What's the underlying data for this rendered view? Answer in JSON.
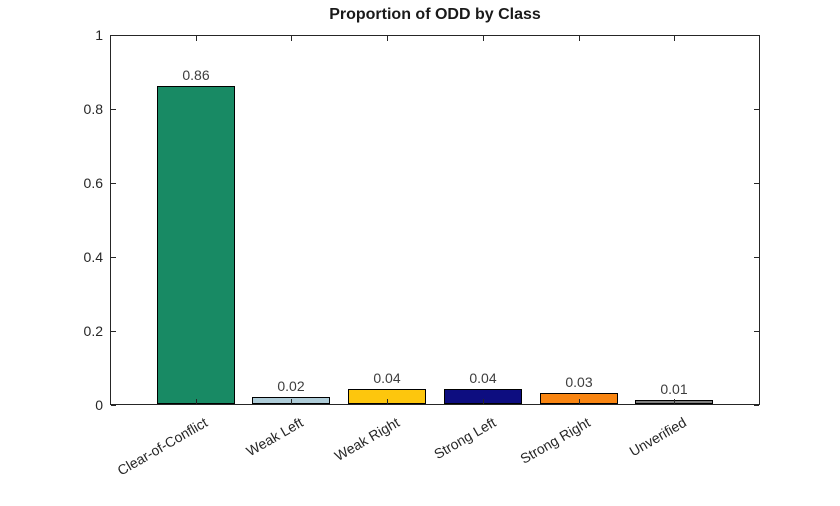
{
  "figure": {
    "background": "#ffffff"
  },
  "chart_data": {
    "type": "bar",
    "title": "Proportion of ODD by Class",
    "categories": [
      "Clear-of-Conflict",
      "Weak Left",
      "Weak Right",
      "Strong Left",
      "Strong Right",
      "Unverified"
    ],
    "values": [
      0.86,
      0.02,
      0.04,
      0.04,
      0.03,
      0.01
    ],
    "value_labels": [
      "0.86",
      "0.02",
      "0.04",
      "0.04",
      "0.03",
      "0.01"
    ],
    "bar_colors": [
      "#188a64",
      "#aeccd8",
      "#fdc60d",
      "#0d0d80",
      "#f98511",
      "#7f7f7f"
    ],
    "bar_edge_color": "#000000",
    "xlabel": "",
    "ylabel": "",
    "ylim": [
      0,
      1
    ],
    "yticks": [
      0,
      0.2,
      0.4,
      0.6,
      0.8,
      1
    ],
    "ytick_labels": [
      "0",
      "0.2",
      "0.4",
      "0.6",
      "0.8",
      "1"
    ],
    "x_tick_rotation_deg": 30,
    "grid": false,
    "legend": null,
    "axis_color": "#262626",
    "tick_label_color": "#262626",
    "value_label_color": "#3d3d3d"
  }
}
